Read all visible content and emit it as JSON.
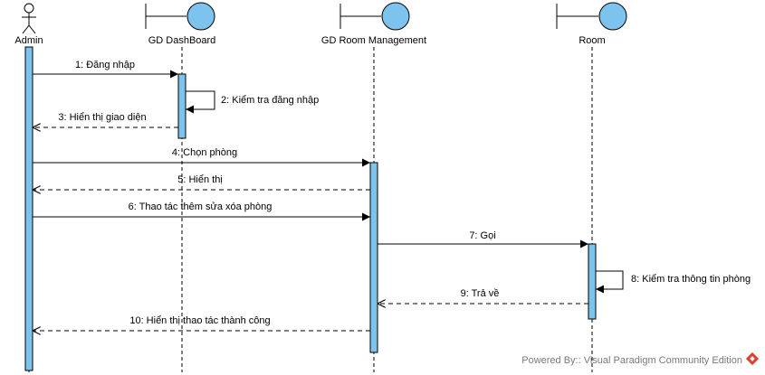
{
  "participants": [
    {
      "name": "Admin",
      "kind": "actor"
    },
    {
      "name": "GD DashBoard",
      "kind": "boundary"
    },
    {
      "name": "GD Room Management",
      "kind": "boundary"
    },
    {
      "name": "Room",
      "kind": "boundary"
    }
  ],
  "messages": [
    {
      "label": "1: Đăng nhập",
      "type": "call"
    },
    {
      "label": "2: Kiểm tra đăng nhập",
      "type": "self"
    },
    {
      "label": "3: Hiển thị giao diện",
      "type": "return"
    },
    {
      "label": "4: Chọn phòng",
      "type": "call"
    },
    {
      "label": "5: Hiển thị",
      "type": "return"
    },
    {
      "label": "6: Thao tác thêm sửa xóa phòng",
      "type": "call"
    },
    {
      "label": "7: Gọi",
      "type": "call"
    },
    {
      "label": "8: Kiểm tra thông tin phòng",
      "type": "self"
    },
    {
      "label": "9: Trả về",
      "type": "return"
    },
    {
      "label": "10: Hiển thị thao tác thành công",
      "type": "return"
    }
  ],
  "footer": {
    "text": "Powered By:: Visual Paradigm Community Edition"
  },
  "colors": {
    "activation": "#7cc4ee",
    "boundary_fill": "#7cc4ee",
    "footer_text": "#7a7a7a"
  }
}
